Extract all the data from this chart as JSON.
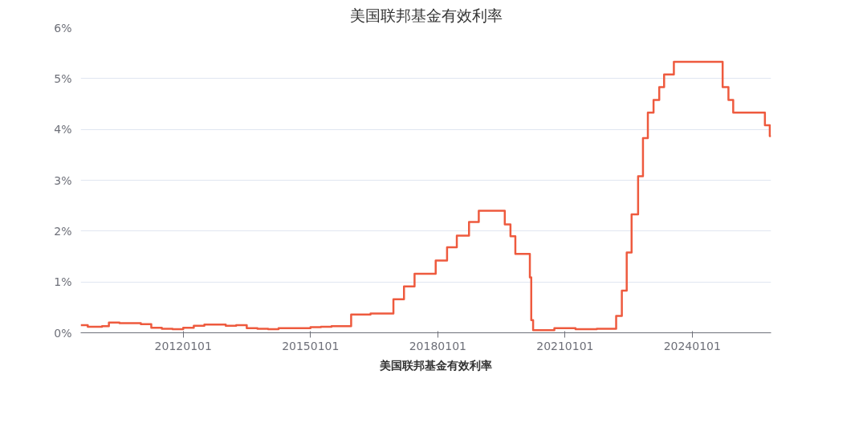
{
  "chart_data": {
    "type": "step",
    "title": "美国联邦基金有效利率",
    "x": [
      "2009-08-01",
      "2009-10-01",
      "2009-12-01",
      "2010-02-01",
      "2010-04-01",
      "2010-07-01",
      "2010-10-01",
      "2011-01-01",
      "2011-04-01",
      "2011-07-01",
      "2011-10-01",
      "2012-01-01",
      "2012-04-01",
      "2012-07-01",
      "2012-10-01",
      "2013-01-01",
      "2013-04-01",
      "2013-07-01",
      "2013-10-01",
      "2014-01-01",
      "2014-04-01",
      "2014-07-01",
      "2014-10-01",
      "2015-01-01",
      "2015-04-01",
      "2015-07-01",
      "2015-10-01",
      "2015-12-17",
      "2016-06-01",
      "2016-12-15",
      "2017-03-16",
      "2017-06-15",
      "2017-12-14",
      "2018-03-22",
      "2018-06-14",
      "2018-09-27",
      "2018-12-20",
      "2019-08-01",
      "2019-09-19",
      "2019-10-31",
      "2020-03-04",
      "2020-03-16",
      "2020-04-01",
      "2020-10-01",
      "2021-04-01",
      "2021-10-01",
      "2022-03-17",
      "2022-05-05",
      "2022-06-16",
      "2022-07-28",
      "2022-09-22",
      "2022-11-03",
      "2022-12-15",
      "2023-02-02",
      "2023-03-23",
      "2023-05-04",
      "2023-07-27",
      "2024-09-19",
      "2024-11-08",
      "2024-12-19",
      "2025-09-18",
      "2025-10-30",
      "2025-11-10"
    ],
    "series": [
      {
        "name": "美国联邦基金有效利率",
        "color": "#ee5a3e",
        "values": [
          0.15,
          0.12,
          0.12,
          0.13,
          0.2,
          0.19,
          0.19,
          0.17,
          0.1,
          0.08,
          0.07,
          0.1,
          0.14,
          0.16,
          0.16,
          0.14,
          0.15,
          0.09,
          0.08,
          0.07,
          0.09,
          0.09,
          0.09,
          0.11,
          0.12,
          0.13,
          0.13,
          0.36,
          0.38,
          0.66,
          0.91,
          1.16,
          1.42,
          1.68,
          1.91,
          2.18,
          2.4,
          2.13,
          1.9,
          1.55,
          1.09,
          0.25,
          0.05,
          0.09,
          0.07,
          0.08,
          0.33,
          0.83,
          1.58,
          2.33,
          3.08,
          3.83,
          4.33,
          4.58,
          4.83,
          5.08,
          5.33,
          4.83,
          4.58,
          4.33,
          4.08,
          3.87,
          3.87
        ]
      }
    ],
    "xlim": [
      "2009-08-01",
      "2025-11-10"
    ],
    "xticks": [
      {
        "value": "2012-01-01",
        "label": "20120101"
      },
      {
        "value": "2015-01-01",
        "label": "20150101"
      },
      {
        "value": "2018-01-01",
        "label": "20180101"
      },
      {
        "value": "2021-01-01",
        "label": "20210101"
      },
      {
        "value": "2024-01-01",
        "label": "20240101"
      }
    ],
    "ylim": [
      0,
      6
    ],
    "yticks": [
      {
        "value": 0,
        "label": "0%"
      },
      {
        "value": 1,
        "label": "1%"
      },
      {
        "value": 2,
        "label": "2%"
      },
      {
        "value": 3,
        "label": "3%"
      },
      {
        "value": 4,
        "label": "4%"
      },
      {
        "value": 5,
        "label": "5%"
      },
      {
        "value": 6,
        "label": "6%"
      }
    ],
    "grid": "y",
    "legend": "bottom"
  }
}
